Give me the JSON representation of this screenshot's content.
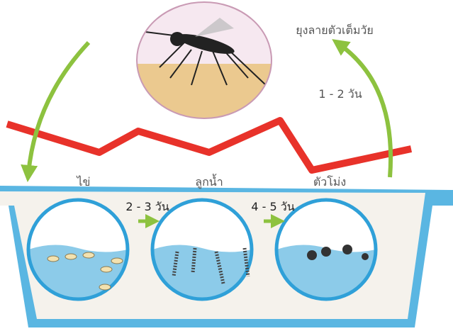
{
  "labels": {
    "adult": "ยุงลายตัวเต็มวัย",
    "adult_days": "1 - 2 วัน",
    "egg": "ไข่",
    "egg_days": "2 - 3 วัน",
    "larva": "ลูกน้ำ",
    "larva_days": "4 - 5 วัน",
    "pupa": "ตัวโม่ง"
  }
}
